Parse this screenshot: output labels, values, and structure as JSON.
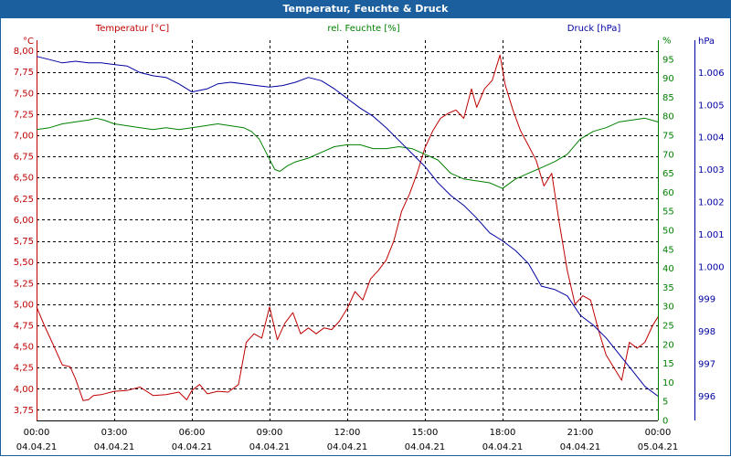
{
  "window": {
    "title": "Temperatur, Feuchte & Druck"
  },
  "chart_data": {
    "type": "line",
    "title": "Temperatur, Feuchte & Druck",
    "x_ticks": [
      {
        "time": "00:00",
        "date": "04.04.21",
        "h": 0
      },
      {
        "time": "03:00",
        "date": "04.04.21",
        "h": 3
      },
      {
        "time": "06:00",
        "date": "04.04.21",
        "h": 6
      },
      {
        "time": "09:00",
        "date": "04.04.21",
        "h": 9
      },
      {
        "time": "12:00",
        "date": "04.04.21",
        "h": 12
      },
      {
        "time": "15:00",
        "date": "04.04.21",
        "h": 15
      },
      {
        "time": "18:00",
        "date": "04.04.21",
        "h": 18
      },
      {
        "time": "21:00",
        "date": "04.04.21",
        "h": 21
      },
      {
        "time": "00:00",
        "date": "05.04.21",
        "h": 24
      }
    ],
    "xlim": [
      0,
      24
    ],
    "grid": true,
    "axes": {
      "temp": {
        "label": "Temperatur [°C]",
        "unit": "°C",
        "color": "#c00000",
        "min": 3.625,
        "max": 8.125,
        "ticks": [
          {
            "v": 8.0,
            "t": "8,00"
          },
          {
            "v": 7.75,
            "t": "7,75"
          },
          {
            "v": 7.5,
            "t": "7,50"
          },
          {
            "v": 7.25,
            "t": "7,25"
          },
          {
            "v": 7.0,
            "t": "7,00"
          },
          {
            "v": 6.75,
            "t": "6,75"
          },
          {
            "v": 6.5,
            "t": "6,50"
          },
          {
            "v": 6.25,
            "t": "6,25"
          },
          {
            "v": 6.0,
            "t": "6,00"
          },
          {
            "v": 5.75,
            "t": "5,75"
          },
          {
            "v": 5.5,
            "t": "5,50"
          },
          {
            "v": 5.25,
            "t": "5,25"
          },
          {
            "v": 5.0,
            "t": "5,00"
          },
          {
            "v": 4.75,
            "t": "4,75"
          },
          {
            "v": 4.5,
            "t": "4,50"
          },
          {
            "v": 4.25,
            "t": "4,25"
          },
          {
            "v": 4.0,
            "t": "4,00"
          },
          {
            "v": 3.75,
            "t": "3,75"
          }
        ]
      },
      "hum": {
        "label": "rel. Feuchte [%]",
        "unit": "%",
        "color": "#008000",
        "min": 0,
        "max": 100,
        "ticks": [
          {
            "v": 100,
            "t": "%"
          },
          {
            "v": 95,
            "t": "95"
          },
          {
            "v": 90,
            "t": "90"
          },
          {
            "v": 85,
            "t": "85"
          },
          {
            "v": 80,
            "t": "80"
          },
          {
            "v": 75,
            "t": "75"
          },
          {
            "v": 70,
            "t": "70"
          },
          {
            "v": 65,
            "t": "65"
          },
          {
            "v": 60,
            "t": "60"
          },
          {
            "v": 55,
            "t": "55"
          },
          {
            "v": 50,
            "t": "50"
          },
          {
            "v": 45,
            "t": "45"
          },
          {
            "v": 40,
            "t": "40"
          },
          {
            "v": 35,
            "t": "35"
          },
          {
            "v": 30,
            "t": "30"
          },
          {
            "v": 25,
            "t": "25"
          },
          {
            "v": 20,
            "t": "20"
          },
          {
            "v": 15,
            "t": "15"
          },
          {
            "v": 10,
            "t": "10"
          },
          {
            "v": 5,
            "t": "5"
          },
          {
            "v": 0,
            "t": "0"
          }
        ]
      },
      "press": {
        "label": "Druck [hPa]",
        "unit": "hPa",
        "color": "#0000a0",
        "min": 995.25,
        "max": 1007.0,
        "ticks": [
          {
            "v": 1006,
            "t": "1.006"
          },
          {
            "v": 1005,
            "t": "1.005"
          },
          {
            "v": 1004,
            "t": "1.004"
          },
          {
            "v": 1003,
            "t": "1.003"
          },
          {
            "v": 1002,
            "t": "1.002"
          },
          {
            "v": 1001,
            "t": "1.001"
          },
          {
            "v": 1000,
            "t": "1.000"
          },
          {
            "v": 999,
            "t": "999"
          },
          {
            "v": 998,
            "t": "998"
          },
          {
            "v": 997,
            "t": "997"
          },
          {
            "v": 996,
            "t": "996"
          }
        ]
      }
    },
    "series": [
      {
        "name": "Temperatur [°C]",
        "axis": "temp",
        "color": "#c00000",
        "x": [
          0,
          0.3,
          0.6,
          1.0,
          1.3,
          1.5,
          1.8,
          2.0,
          2.2,
          2.5,
          3.0,
          3.5,
          4.0,
          4.5,
          5.0,
          5.5,
          5.8,
          6.0,
          6.3,
          6.6,
          7.0,
          7.4,
          7.8,
          8.1,
          8.4,
          8.7,
          9.0,
          9.3,
          9.6,
          9.9,
          10.2,
          10.5,
          10.8,
          11.1,
          11.4,
          11.7,
          12.0,
          12.3,
          12.6,
          12.9,
          13.2,
          13.5,
          13.8,
          14.1,
          14.4,
          14.7,
          15.0,
          15.3,
          15.6,
          15.9,
          16.2,
          16.5,
          16.8,
          17.0,
          17.3,
          17.6,
          17.9,
          18.1,
          18.4,
          18.7,
          19.0,
          19.3,
          19.6,
          19.9,
          20.2,
          20.5,
          20.8,
          21.1,
          21.4,
          21.7,
          22.0,
          22.3,
          22.6,
          22.9,
          23.2,
          23.5,
          23.8,
          24.0
        ],
        "y": [
          4.97,
          4.75,
          4.55,
          4.28,
          4.26,
          4.12,
          3.86,
          3.87,
          3.92,
          3.93,
          3.97,
          3.98,
          4.02,
          3.92,
          3.93,
          3.96,
          3.87,
          3.98,
          4.05,
          3.94,
          3.97,
          3.96,
          4.05,
          4.55,
          4.65,
          4.6,
          4.97,
          4.58,
          4.78,
          4.9,
          4.65,
          4.72,
          4.65,
          4.72,
          4.7,
          4.8,
          4.95,
          5.15,
          5.05,
          5.3,
          5.4,
          5.52,
          5.75,
          6.1,
          6.3,
          6.55,
          6.85,
          7.05,
          7.2,
          7.26,
          7.3,
          7.2,
          7.55,
          7.33,
          7.55,
          7.65,
          7.95,
          7.6,
          7.3,
          7.05,
          6.88,
          6.7,
          6.4,
          6.55,
          5.95,
          5.4,
          5.0,
          5.1,
          5.05,
          4.7,
          4.4,
          4.25,
          4.1,
          4.55,
          4.48,
          4.55,
          4.75,
          4.85
        ]
      },
      {
        "name": "rel. Feuchte [%]",
        "axis": "hum",
        "color": "#008000",
        "x": [
          0,
          0.5,
          1.0,
          1.5,
          2.0,
          2.3,
          2.6,
          3.0,
          3.5,
          4.0,
          4.5,
          5.0,
          5.5,
          6.0,
          6.5,
          7.0,
          7.5,
          8.0,
          8.3,
          8.6,
          8.9,
          9.2,
          9.4,
          9.7,
          10.0,
          10.5,
          11.0,
          11.5,
          12.0,
          12.5,
          13.0,
          13.5,
          14.0,
          14.5,
          15.0,
          15.5,
          16.0,
          16.5,
          17.0,
          17.5,
          18.0,
          18.5,
          19.0,
          19.5,
          20.0,
          20.5,
          21.0,
          21.5,
          22.0,
          22.5,
          23.0,
          23.5,
          24.0
        ],
        "y": [
          76.5,
          77.0,
          78.0,
          78.5,
          79.0,
          79.5,
          79.0,
          78.0,
          77.5,
          77.0,
          76.5,
          77.0,
          76.5,
          77.0,
          77.5,
          78.0,
          77.5,
          77.0,
          76.0,
          74.0,
          70.0,
          66.0,
          65.5,
          67.0,
          68.0,
          69.0,
          70.5,
          72.0,
          72.5,
          72.5,
          71.5,
          71.5,
          72.0,
          71.5,
          70.0,
          68.5,
          65.0,
          63.5,
          63.0,
          62.5,
          61.0,
          63.5,
          65.0,
          66.5,
          68.0,
          70.0,
          74.0,
          76.0,
          77.0,
          78.5,
          79.0,
          79.5,
          78.5
        ]
      },
      {
        "name": "Druck [hPa]",
        "axis": "press",
        "color": "#0000a0",
        "x": [
          0,
          0.5,
          1.0,
          1.5,
          2.0,
          2.5,
          3.0,
          3.5,
          4.0,
          4.5,
          5.0,
          5.5,
          6.0,
          6.3,
          6.6,
          7.0,
          7.5,
          8.0,
          8.5,
          9.0,
          9.5,
          10.0,
          10.5,
          11.0,
          11.5,
          12.0,
          12.5,
          13.0,
          13.5,
          14.0,
          14.5,
          15.0,
          15.5,
          16.0,
          16.5,
          17.0,
          17.5,
          18.0,
          18.5,
          19.0,
          19.5,
          20.0,
          20.5,
          21.0,
          21.5,
          22.0,
          22.5,
          23.0,
          23.5,
          24.0
        ],
        "y": [
          1006.5,
          1006.4,
          1006.3,
          1006.35,
          1006.3,
          1006.3,
          1006.25,
          1006.2,
          1006.0,
          1005.9,
          1005.85,
          1005.65,
          1005.4,
          1005.45,
          1005.5,
          1005.65,
          1005.7,
          1005.65,
          1005.6,
          1005.55,
          1005.6,
          1005.7,
          1005.85,
          1005.75,
          1005.5,
          1005.2,
          1004.9,
          1004.65,
          1004.3,
          1003.9,
          1003.5,
          1003.1,
          1002.6,
          1002.2,
          1001.9,
          1001.5,
          1001.05,
          1000.8,
          1000.5,
          1000.1,
          999.4,
          999.3,
          999.1,
          998.5,
          998.2,
          997.8,
          997.3,
          996.8,
          996.3,
          996.0
        ]
      }
    ]
  }
}
